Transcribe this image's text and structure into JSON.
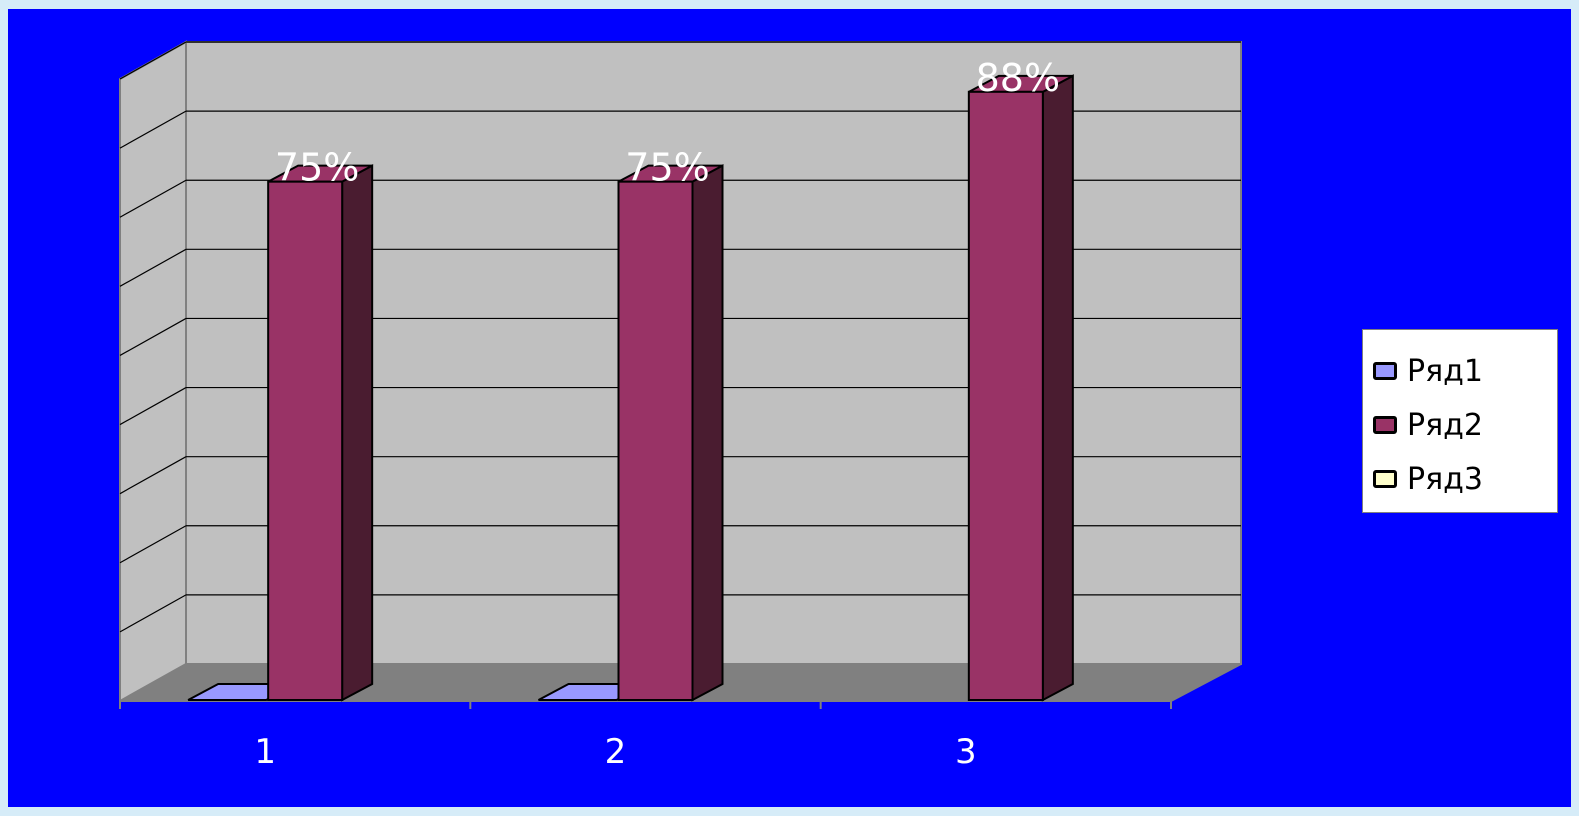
{
  "chart_data": {
    "type": "bar",
    "style": "3d-clustered-column",
    "categories": [
      "1",
      "2",
      "3"
    ],
    "series": [
      {
        "name": "Ряд1",
        "values": [
          0,
          0,
          0
        ],
        "color": "#9999ff"
      },
      {
        "name": "Ряд2",
        "values": [
          75,
          75,
          88
        ],
        "color": "#993366",
        "side_color": "#4a1c30",
        "data_labels": [
          "75%",
          "75%",
          "88%"
        ]
      },
      {
        "name": "Ряд3",
        "values": [
          0,
          0,
          0
        ],
        "color": "#ffffcc"
      }
    ],
    "ylim": [
      0,
      90
    ],
    "gridlines": true,
    "legend_position": "right",
    "colors": {
      "background": "#0000ff",
      "page": "#d6ecf8",
      "wall": "#c0c0c0",
      "floor": "#808080",
      "side_wall": "#c0c0c0",
      "data_label": "#ffffff",
      "tick_label": "#ffffff"
    }
  }
}
